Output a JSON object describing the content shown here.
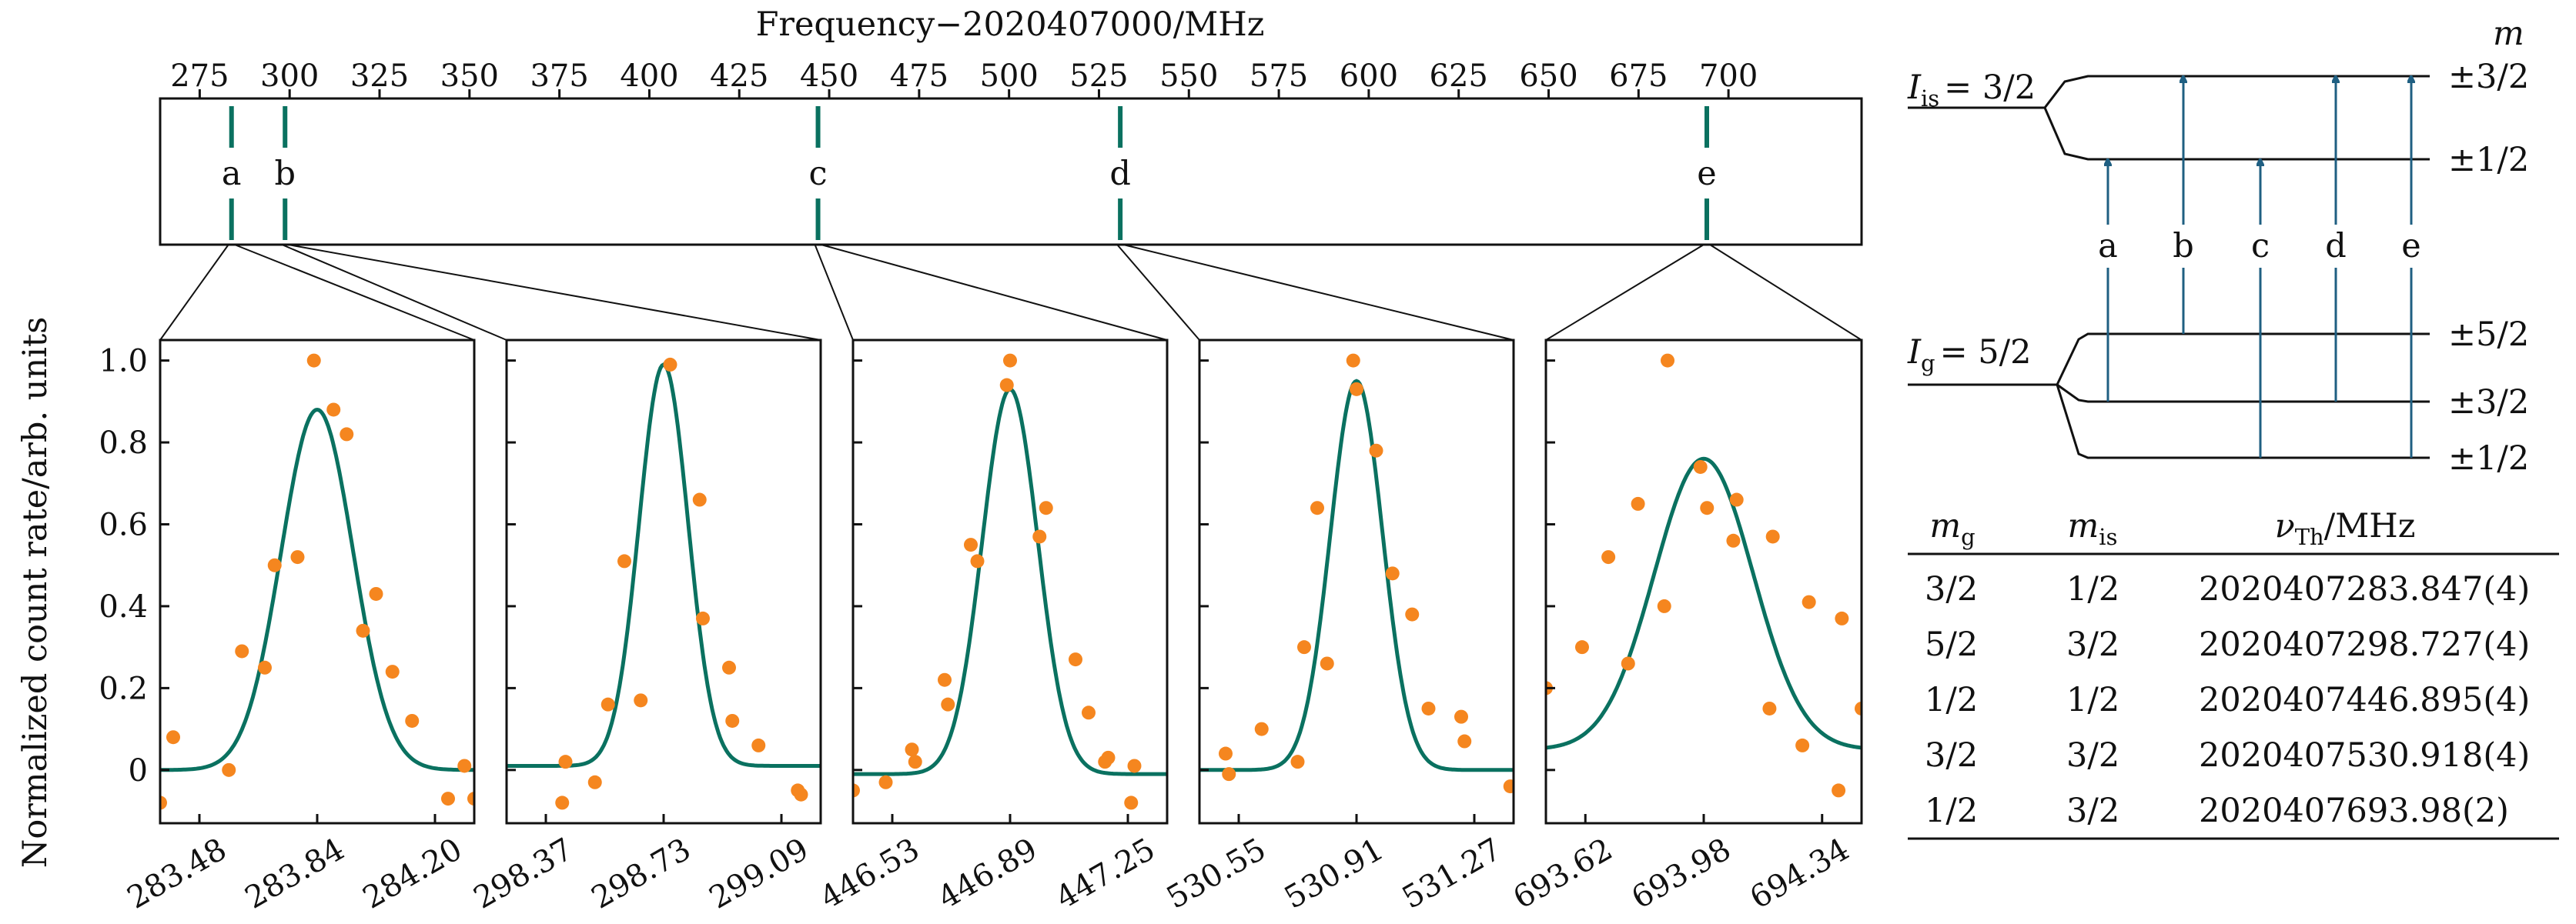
{
  "colors": {
    "fit": "#0a7160",
    "data": "#f5861f",
    "level_arrow": "#1f5f82",
    "axis": "#111111"
  },
  "overview": {
    "xlabel": "Frequency−2020407000/MHz",
    "xlim": [
      264,
      737
    ],
    "ticks": [
      275,
      300,
      325,
      350,
      375,
      400,
      425,
      450,
      475,
      500,
      525,
      550,
      575,
      600,
      625,
      650,
      675,
      700
    ],
    "tick_labels": [
      "275",
      "300",
      "325",
      "350",
      "375",
      "400",
      "425",
      "450",
      "475",
      "500",
      "525",
      "550",
      "575",
      "600",
      "625",
      "650",
      "675",
      "700"
    ],
    "lines": [
      {
        "label": "a",
        "x": 283.847
      },
      {
        "label": "b",
        "x": 298.727
      },
      {
        "label": "c",
        "x": 446.895
      },
      {
        "label": "d",
        "x": 530.918
      },
      {
        "label": "e",
        "x": 693.98
      }
    ]
  },
  "chart_data": [
    {
      "type": "scatter",
      "ylabel": "Normalized count rate/arb. units",
      "xlim": [
        283.36,
        284.32
      ],
      "ylim": [
        -0.13,
        1.05
      ],
      "yticks": [
        0,
        0.2,
        0.4,
        0.6,
        0.8,
        1.0
      ],
      "ytick_labels": [
        "0",
        "0.2",
        "0.4",
        "0.6",
        "0.8",
        "1.0"
      ],
      "xticks": [
        283.48,
        283.84,
        284.2
      ],
      "xtick_labels": [
        "283.48",
        "283.84",
        "284.20"
      ],
      "fit": {
        "center": 283.84,
        "sigma": 0.11,
        "amplitude": 0.88,
        "offset": 0
      },
      "points": [
        [
          283.36,
          -0.08
        ],
        [
          283.4,
          0.08
        ],
        [
          283.57,
          0.0
        ],
        [
          283.61,
          0.29
        ],
        [
          283.68,
          0.25
        ],
        [
          283.71,
          0.5
        ],
        [
          283.78,
          0.52
        ],
        [
          283.83,
          1.0
        ],
        [
          283.89,
          0.88
        ],
        [
          283.93,
          0.82
        ],
        [
          283.98,
          0.34
        ],
        [
          284.02,
          0.43
        ],
        [
          284.07,
          0.24
        ],
        [
          284.13,
          0.12
        ],
        [
          284.24,
          -0.07
        ],
        [
          284.29,
          0.01
        ],
        [
          284.32,
          -0.07
        ]
      ]
    },
    {
      "type": "scatter",
      "xlim": [
        298.25,
        299.21
      ],
      "ylim": [
        -0.13,
        1.05
      ],
      "xticks": [
        298.37,
        298.73,
        299.09
      ],
      "xtick_labels": [
        "298.37",
        "298.73",
        "299.09"
      ],
      "fit": {
        "center": 298.73,
        "sigma": 0.075,
        "amplitude": 0.98,
        "offset": 0.01
      },
      "points": [
        [
          298.42,
          -0.08
        ],
        [
          298.43,
          0.02
        ],
        [
          298.52,
          -0.03
        ],
        [
          298.56,
          0.16
        ],
        [
          298.61,
          0.51
        ],
        [
          298.66,
          0.17
        ],
        [
          298.75,
          0.99
        ],
        [
          298.84,
          0.66
        ],
        [
          298.85,
          0.37
        ],
        [
          298.93,
          0.25
        ],
        [
          298.94,
          0.12
        ],
        [
          299.02,
          0.06
        ],
        [
          299.14,
          -0.05
        ],
        [
          299.15,
          -0.06
        ]
      ]
    },
    {
      "type": "scatter",
      "xlim": [
        446.41,
        447.37
      ],
      "ylim": [
        -0.13,
        1.05
      ],
      "xticks": [
        446.53,
        446.89,
        447.25
      ],
      "xtick_labels": [
        "446.53",
        "446.89",
        "447.25"
      ],
      "fit": {
        "center": 446.89,
        "sigma": 0.085,
        "amplitude": 0.94,
        "offset": -0.01
      },
      "points": [
        [
          446.41,
          -0.05
        ],
        [
          446.51,
          -0.03
        ],
        [
          446.59,
          0.05
        ],
        [
          446.6,
          0.02
        ],
        [
          446.69,
          0.22
        ],
        [
          446.7,
          0.16
        ],
        [
          446.77,
          0.55
        ],
        [
          446.79,
          0.51
        ],
        [
          446.88,
          0.94
        ],
        [
          446.89,
          1.0
        ],
        [
          446.98,
          0.57
        ],
        [
          447.0,
          0.64
        ],
        [
          447.09,
          0.27
        ],
        [
          447.13,
          0.14
        ],
        [
          447.18,
          0.02
        ],
        [
          447.19,
          0.03
        ],
        [
          447.26,
          -0.08
        ],
        [
          447.27,
          0.01
        ]
      ]
    },
    {
      "type": "scatter",
      "xlim": [
        530.43,
        531.39
      ],
      "ylim": [
        -0.13,
        1.05
      ],
      "xticks": [
        530.55,
        530.91,
        531.27
      ],
      "xtick_labels": [
        "530.55",
        "530.91",
        "531.27"
      ],
      "fit": {
        "center": 530.91,
        "sigma": 0.08,
        "amplitude": 0.95,
        "offset": 0
      },
      "points": [
        [
          530.51,
          0.04
        ],
        [
          530.52,
          -0.01
        ],
        [
          530.62,
          0.1
        ],
        [
          530.73,
          0.02
        ],
        [
          530.75,
          0.3
        ],
        [
          530.79,
          0.64
        ],
        [
          530.82,
          0.26
        ],
        [
          530.9,
          1.0
        ],
        [
          530.91,
          0.93
        ],
        [
          530.97,
          0.78
        ],
        [
          531.02,
          0.48
        ],
        [
          531.08,
          0.38
        ],
        [
          531.13,
          0.15
        ],
        [
          531.23,
          0.13
        ],
        [
          531.24,
          0.07
        ],
        [
          531.38,
          -0.04
        ]
      ]
    },
    {
      "type": "scatter",
      "xlim": [
        693.5,
        694.46
      ],
      "ylim": [
        -0.13,
        1.05
      ],
      "xticks": [
        693.62,
        693.98,
        694.34
      ],
      "xtick_labels": [
        "693.62",
        "693.98",
        "694.34"
      ],
      "fit": {
        "center": 693.98,
        "sigma": 0.15,
        "amplitude": 0.71,
        "offset": 0.05
      },
      "points": [
        [
          693.5,
          0.2
        ],
        [
          693.61,
          0.3
        ],
        [
          693.69,
          0.52
        ],
        [
          693.75,
          0.26
        ],
        [
          693.78,
          0.65
        ],
        [
          693.86,
          0.4
        ],
        [
          693.87,
          1.0
        ],
        [
          693.97,
          0.74
        ],
        [
          693.99,
          0.64
        ],
        [
          694.07,
          0.56
        ],
        [
          694.08,
          0.66
        ],
        [
          694.18,
          0.15
        ],
        [
          694.19,
          0.57
        ],
        [
          694.28,
          0.06
        ],
        [
          694.3,
          0.41
        ],
        [
          694.39,
          -0.05
        ],
        [
          694.4,
          0.37
        ],
        [
          694.46,
          0.15
        ]
      ]
    }
  ],
  "level_diagram": {
    "m_header": "m",
    "upper": {
      "label_main": "I",
      "label_sub": "is",
      "label_value": "= 3/2",
      "m_labels": [
        "±3/2",
        "±1/2"
      ]
    },
    "lower": {
      "label_main": "I",
      "label_sub": "g",
      "label_value": "= 5/2",
      "m_labels": [
        "±5/2",
        "±3/2",
        "±1/2"
      ]
    },
    "transitions": [
      "a",
      "b",
      "c",
      "d",
      "e"
    ]
  },
  "table": {
    "headers": [
      {
        "main": "m",
        "sub": "g",
        "rest": ""
      },
      {
        "main": "m",
        "sub": "is",
        "rest": ""
      },
      {
        "main": "ν",
        "sub": "Th",
        "rest": "/MHz"
      }
    ],
    "rows": [
      [
        "3/2",
        "1/2",
        "2020407283.847(4)"
      ],
      [
        "5/2",
        "3/2",
        "2020407298.727(4)"
      ],
      [
        "1/2",
        "1/2",
        "2020407446.895(4)"
      ],
      [
        "3/2",
        "3/2",
        "2020407530.918(4)"
      ],
      [
        "1/2",
        "3/2",
        "2020407693.98(2)"
      ]
    ]
  }
}
